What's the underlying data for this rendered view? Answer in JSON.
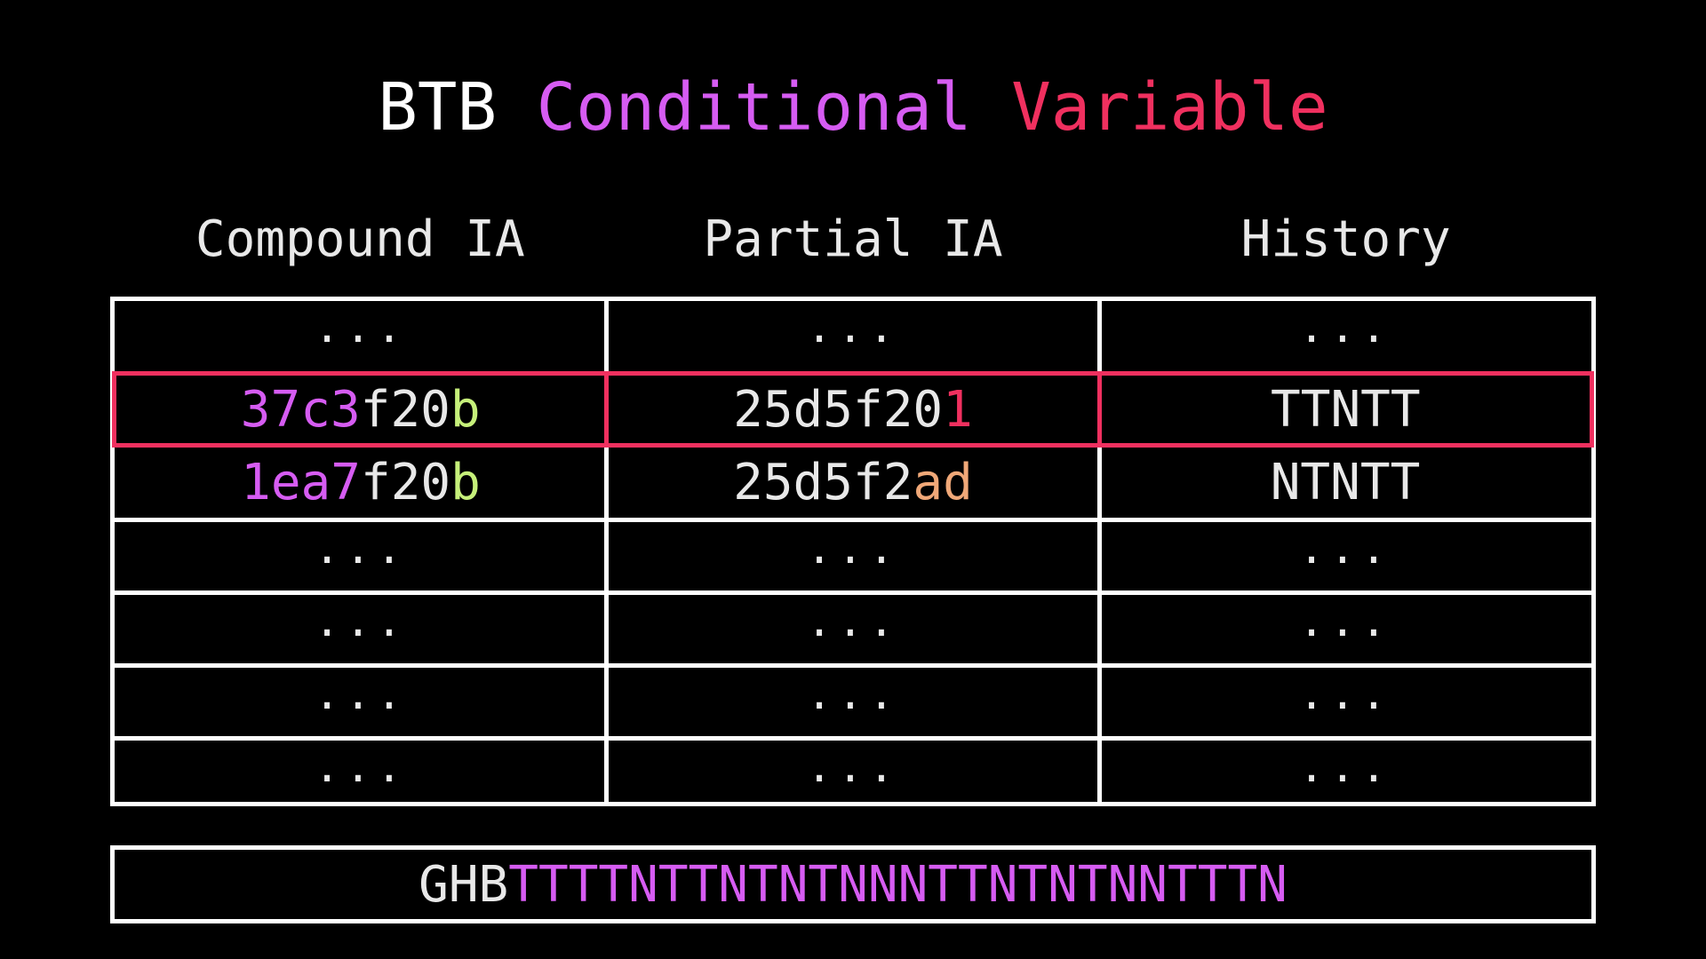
{
  "colors": {
    "background": "#000000",
    "text": "#e8e8e8",
    "purple": "#d65cf2",
    "red": "#f0305f",
    "green": "#c6f07a",
    "peach": "#f0a878",
    "border": "#ffffff",
    "highlight_border": "#f0305f"
  },
  "title": {
    "word1": "BTB",
    "word2": "Conditional",
    "word3": "Variable"
  },
  "columns": [
    "Compound IA",
    "Partial IA",
    "History"
  ],
  "ellipsis": "...",
  "rows": {
    "highlighted": {
      "compound": {
        "prefix": "37c3",
        "mid": "f20",
        "suffix": "b"
      },
      "partial": {
        "prefix": "25d5f20",
        "suffix": "1"
      },
      "history": "TTNTT"
    },
    "second": {
      "compound": {
        "prefix": "1ea7",
        "mid": "f20",
        "suffix": "b"
      },
      "partial": {
        "prefix": "25d5f2",
        "suffix": "ad"
      },
      "history": "NTNTT"
    }
  },
  "ghb": {
    "label": "GHB",
    "value": "TTTTNTTNTNTNNNTTNTNTNNTTTN"
  }
}
